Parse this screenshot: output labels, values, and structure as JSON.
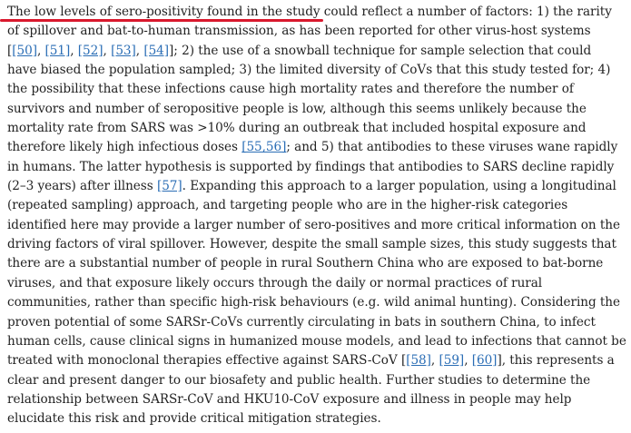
{
  "paragraph": {
    "highlighted_phrase": "The low levels of sero-positivity found in the study",
    "l1_rest": " could reflect a number of factors: 1) the rarity",
    "l2": "of spillover and bat-to-human transmission, as has been reported for other virus-host systems",
    "l3_open": "[",
    "ref_50": "[50]",
    "sep_1": ", ",
    "ref_51": "[51]",
    "sep_2": ", ",
    "ref_52": "[52]",
    "sep_3": ", ",
    "ref_53": "[53]",
    "sep_4": ", ",
    "ref_54": "[54]",
    "l3_rest": "]; 2) the use of a snowball technique for sample selection that could",
    "l4": "have biased the population sampled; 3) the limited diversity of CoVs that this study tested for; 4)",
    "l5": "the possibility that these infections cause high mortality rates and therefore the number of",
    "l6": "survivors and number of seropositive people is low, although this seems unlikely because the",
    "l7": "mortality rate from SARS was >10% during an outbreak that included hospital exposure and",
    "l8_pre": "therefore likely high infectious doses ",
    "ref_55_56": "[55,56]",
    "l8_rest": "; and 5) that antibodies to these viruses wane rapidly",
    "l9": "in humans. The latter hypothesis is supported by findings that antibodies to SARS decline rapidly",
    "l10_pre": "(2–3 years) after illness ",
    "ref_57": "[57]",
    "l10_rest": ". Expanding this approach to a larger population, using a longitudinal",
    "l11": "(repeated sampling) approach, and targeting people who are in the higher-risk categories",
    "l12": "identified here may provide a larger number of sero-positives and more critical information on the",
    "l13": "driving factors of viral spillover. However, despite the small sample sizes, this study suggests that",
    "l14": "there are a substantial number of people in rural Southern China who are exposed to bat-borne",
    "l15": "viruses, and that exposure likely occurs through the daily or normal practices of rural",
    "l16": "communities, rather than specific high-risk behaviours (e.g. wild animal hunting). Considering the",
    "l17": "proven potential of some SARSr-CoVs currently circulating in bats in southern China, to infect",
    "l18": "human cells, cause clinical signs in humanized mouse models, and lead to infections that cannot be",
    "l19_pre": "treated with monoclonal therapies effective against SARS-CoV [",
    "ref_58": "[58]",
    "sep_5": ", ",
    "ref_59": "[59]",
    "sep_6": ", ",
    "ref_60": "[60]",
    "l19_rest": "], this represents a",
    "l20": "clear and present danger to our biosafety and public health. Further studies to determine the",
    "l21": "relationship between SARSr-CoV and HKU10-CoV exposure and illness in people may help",
    "l22": "elucidate this risk and provide critical mitigation strategies."
  },
  "colors": {
    "text": "#222222",
    "link": "#2a6db5",
    "highlight_underline": "#d9182d"
  }
}
